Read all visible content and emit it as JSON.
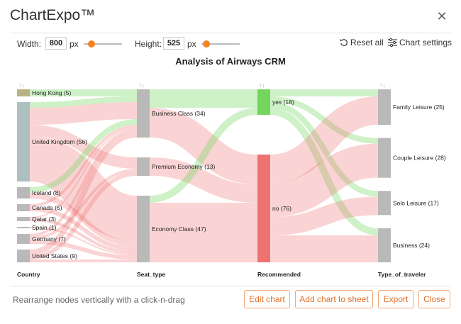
{
  "app": {
    "title": "ChartExpo™"
  },
  "controls": {
    "width_label": "Width:",
    "width_value": "800",
    "height_label": "Height:",
    "height_value": "525",
    "unit": "px",
    "reset_label": "Reset all",
    "settings_label": "Chart settings"
  },
  "footer": {
    "hint": "Rearrange nodes vertically with a click-n-drag",
    "edit_label": "Edit chart",
    "add_label": "Add chart to sheet",
    "export_label": "Export",
    "close_label": "Close"
  },
  "colors": {
    "accent": "#e0712a",
    "positive": "#74d65e",
    "negative": "#ef7272",
    "node_gray": "#b9b9b9"
  },
  "chart_data": {
    "type": "sankey",
    "title": "Analysis of Airways CRM",
    "columns": [
      "Country",
      "Seat_type",
      "Recommended",
      "Type_of_traveler"
    ],
    "nodes": [
      {
        "id": "Hong Kong",
        "label": "Hong Kong (5)",
        "column": 0,
        "value": 5
      },
      {
        "id": "United Kingdom",
        "label": "United Kingdom (56)",
        "column": 0,
        "value": 56
      },
      {
        "id": "Iceland",
        "label": "Iceland (8)",
        "column": 0,
        "value": 8
      },
      {
        "id": "Canada",
        "label": "Canada (5)",
        "column": 0,
        "value": 5
      },
      {
        "id": "Qatar",
        "label": "Qatar (3)",
        "column": 0,
        "value": 3
      },
      {
        "id": "Spain",
        "label": "Spain (1)",
        "column": 0,
        "value": 1
      },
      {
        "id": "Germany",
        "label": "Germany (7)",
        "column": 0,
        "value": 7
      },
      {
        "id": "United States",
        "label": "United States (9)",
        "column": 0,
        "value": 9
      },
      {
        "id": "Business Class",
        "label": "Business Class (34)",
        "column": 1,
        "value": 34
      },
      {
        "id": "Premium Economy",
        "label": "Premium Economy (13)",
        "column": 1,
        "value": 13
      },
      {
        "id": "Economy Class",
        "label": "Economy Class (47)",
        "column": 1,
        "value": 47
      },
      {
        "id": "yes",
        "label": "yes (18)",
        "column": 2,
        "value": 18
      },
      {
        "id": "no",
        "label": "no (76)",
        "column": 2,
        "value": 76
      },
      {
        "id": "Family Leisure",
        "label": "Family Leisure (25)",
        "column": 3,
        "value": 25
      },
      {
        "id": "Couple Leisure",
        "label": "Couple Leisure (28)",
        "column": 3,
        "value": 28
      },
      {
        "id": "Solo Leisure",
        "label": "Solo Leisure (17)",
        "column": 3,
        "value": 17
      },
      {
        "id": "Business",
        "label": "Business (24)",
        "column": 3,
        "value": 24
      }
    ],
    "links": [
      {
        "source": "Hong Kong",
        "target": "Business Class",
        "value": 5,
        "group": "yes"
      },
      {
        "source": "United Kingdom",
        "target": "Business Class",
        "value": 4,
        "group": "yes"
      },
      {
        "source": "United Kingdom",
        "target": "Business Class",
        "value": 12,
        "group": "no"
      },
      {
        "source": "United Kingdom",
        "target": "Premium Economy",
        "value": 8,
        "group": "no"
      },
      {
        "source": "United Kingdom",
        "target": "Economy Class",
        "value": 32,
        "group": "no"
      },
      {
        "source": "Iceland",
        "target": "Business Class",
        "value": 4,
        "group": "yes"
      },
      {
        "source": "Iceland",
        "target": "Economy Class",
        "value": 4,
        "group": "no"
      },
      {
        "source": "Canada",
        "target": "Business Class",
        "value": 2,
        "group": "no"
      },
      {
        "source": "Canada",
        "target": "Economy Class",
        "value": 3,
        "group": "no"
      },
      {
        "source": "Qatar",
        "target": "Business Class",
        "value": 1,
        "group": "no"
      },
      {
        "source": "Qatar",
        "target": "Economy Class",
        "value": 2,
        "group": "no"
      },
      {
        "source": "Spain",
        "target": "Economy Class",
        "value": 1,
        "group": "no"
      },
      {
        "source": "Germany",
        "target": "Business Class",
        "value": 2,
        "group": "no"
      },
      {
        "source": "Germany",
        "target": "Premium Economy",
        "value": 2,
        "group": "no"
      },
      {
        "source": "Germany",
        "target": "Economy Class",
        "value": 3,
        "group": "no"
      },
      {
        "source": "United States",
        "target": "Business Class",
        "value": 4,
        "group": "no"
      },
      {
        "source": "United States",
        "target": "Premium Economy",
        "value": 3,
        "group": "no"
      },
      {
        "source": "United States",
        "target": "Economy Class",
        "value": 2,
        "group": "no"
      },
      {
        "source": "Business Class",
        "target": "yes",
        "value": 13,
        "group": "yes"
      },
      {
        "source": "Business Class",
        "target": "no",
        "value": 21,
        "group": "no"
      },
      {
        "source": "Premium Economy",
        "target": "no",
        "value": 13,
        "group": "no"
      },
      {
        "source": "Economy Class",
        "target": "yes",
        "value": 5,
        "group": "yes"
      },
      {
        "source": "Economy Class",
        "target": "no",
        "value": 42,
        "group": "no"
      },
      {
        "source": "yes",
        "target": "Family Leisure",
        "value": 5,
        "group": "yes"
      },
      {
        "source": "yes",
        "target": "Couple Leisure",
        "value": 4,
        "group": "yes"
      },
      {
        "source": "yes",
        "target": "Solo Leisure",
        "value": 4,
        "group": "yes"
      },
      {
        "source": "yes",
        "target": "Business",
        "value": 5,
        "group": "yes"
      },
      {
        "source": "no",
        "target": "Family Leisure",
        "value": 20,
        "group": "no"
      },
      {
        "source": "no",
        "target": "Couple Leisure",
        "value": 24,
        "group": "no"
      },
      {
        "source": "no",
        "target": "Solo Leisure",
        "value": 13,
        "group": "no"
      },
      {
        "source": "no",
        "target": "Business",
        "value": 19,
        "group": "no"
      }
    ]
  }
}
